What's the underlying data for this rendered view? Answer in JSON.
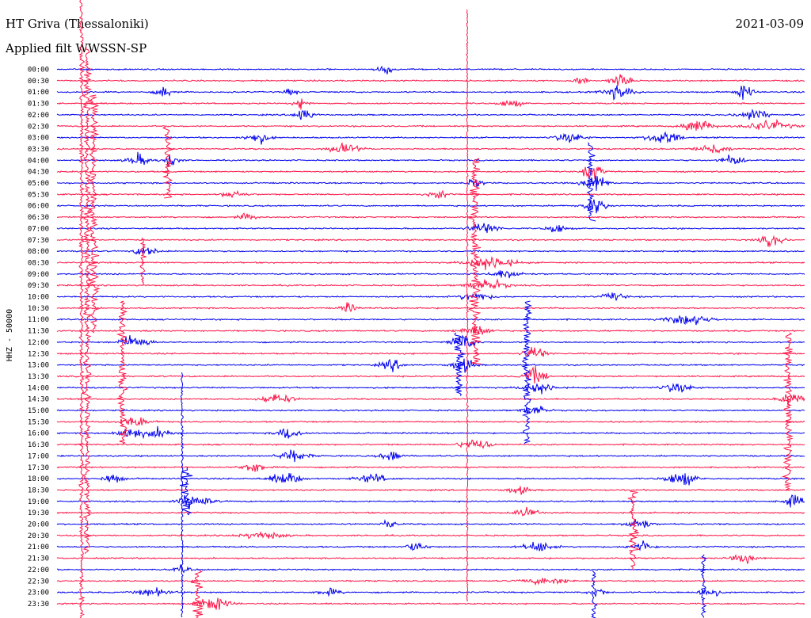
{
  "header": {
    "station": "HT Griva (Thessaloniki)",
    "date": "2021-03-09",
    "filter": "Applied filt   WWSSN-SP"
  },
  "chart_data": {
    "type": "line",
    "title": "HT Griva (Thessaloniki)",
    "subtitle": "Applied filt   WWSSN-SP",
    "ylabel": "HHZ - 50000",
    "xlabel": "",
    "grid": false,
    "colors": {
      "blue": "#0000ee",
      "red": "#ff1447"
    },
    "row_colors": [
      "blue",
      "red"
    ],
    "y_ticks": [
      "00:00",
      "00:30",
      "01:00",
      "01:30",
      "02:00",
      "02:30",
      "03:00",
      "03:30",
      "04:00",
      "04:30",
      "05:00",
      "05:30",
      "06:00",
      "06:30",
      "07:00",
      "07:30",
      "08:00",
      "08:30",
      "09:00",
      "09:30",
      "10:00",
      "10:30",
      "11:00",
      "11:30",
      "12:00",
      "12:30",
      "13:00",
      "13:30",
      "14:00",
      "14:30",
      "15:00",
      "15:30",
      "16:00",
      "16:30",
      "17:00",
      "17:30",
      "18:00",
      "18:30",
      "19:00",
      "19:30",
      "20:00",
      "20:30",
      "21:00",
      "21:30",
      "22:00",
      "22:30",
      "23:00",
      "23:30"
    ],
    "series": []
  }
}
